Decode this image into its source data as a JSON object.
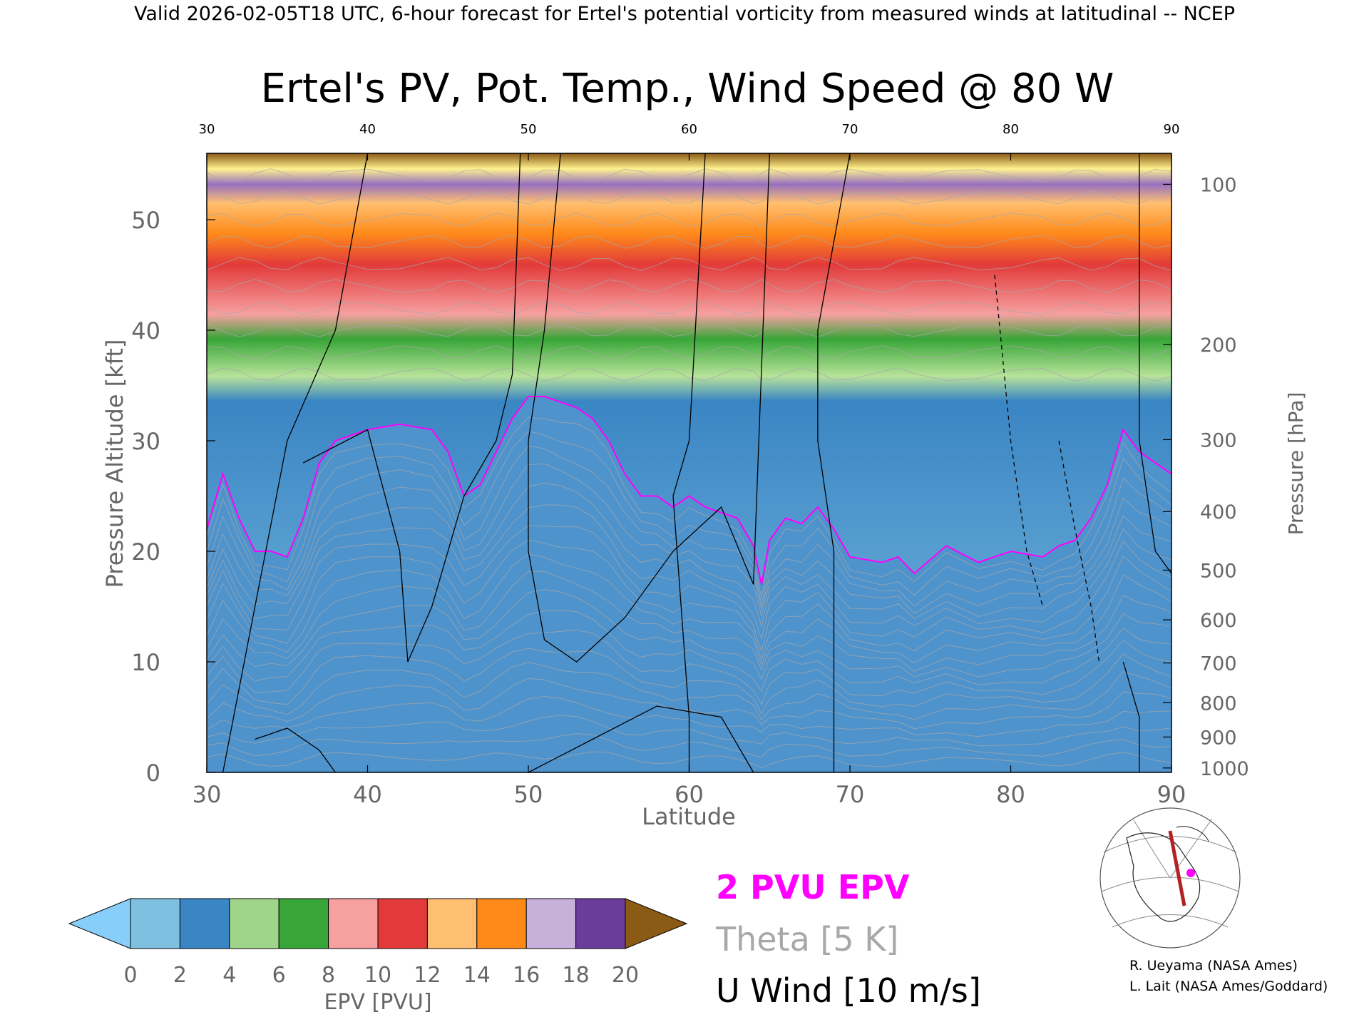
{
  "header": "Valid 2026-02-05T18 UTC, 6-hour forecast for Ertel's potential vorticity from measured winds at latitudinal -- NCEP",
  "chart_data": {
    "type": "heatmap",
    "title": "Ertel's PV, Pot. Temp., Wind Speed @ 80 W",
    "xlabel": "Latitude",
    "ylabel": "Pressure Altitude [kft]",
    "y2label": "Pressure [hPa]",
    "xlim": [
      30,
      90
    ],
    "ylim": [
      0,
      56
    ],
    "x_ticks": [
      "30",
      "40",
      "50",
      "60",
      "70",
      "80",
      "90"
    ],
    "y_ticks": [
      "0",
      "10",
      "20",
      "30",
      "40",
      "50"
    ],
    "pressure_ticks": [
      {
        "label": "1000",
        "kft": 0.4
      },
      {
        "label": "900",
        "kft": 3.2
      },
      {
        "label": "800",
        "kft": 6.3
      },
      {
        "label": "700",
        "kft": 9.9
      },
      {
        "label": "600",
        "kft": 13.8
      },
      {
        "label": "500",
        "kft": 18.3
      },
      {
        "label": "400",
        "kft": 23.6
      },
      {
        "label": "300",
        "kft": 30.1
      },
      {
        "label": "200",
        "kft": 38.7
      },
      {
        "label": "100",
        "kft": 53.2
      }
    ],
    "dynamic_tropopause_2pvu_kft": [
      [
        30,
        22
      ],
      [
        31,
        27
      ],
      [
        32,
        23
      ],
      [
        33,
        20
      ],
      [
        34,
        20
      ],
      [
        35,
        19.5
      ],
      [
        36,
        23
      ],
      [
        37,
        28
      ],
      [
        38,
        30
      ],
      [
        40,
        31
      ],
      [
        42,
        31.5
      ],
      [
        44,
        31
      ],
      [
        45,
        29
      ],
      [
        46,
        25
      ],
      [
        47,
        26
      ],
      [
        48,
        29
      ],
      [
        49,
        32
      ],
      [
        50,
        34
      ],
      [
        51,
        34
      ],
      [
        52,
        33.5
      ],
      [
        53,
        33
      ],
      [
        54,
        32
      ],
      [
        55,
        30
      ],
      [
        56,
        27
      ],
      [
        57,
        25
      ],
      [
        58,
        25
      ],
      [
        59,
        24
      ],
      [
        60,
        25
      ],
      [
        61,
        24
      ],
      [
        62,
        23.5
      ],
      [
        63,
        23
      ],
      [
        64,
        20.5
      ],
      [
        64.5,
        17
      ],
      [
        65,
        21
      ],
      [
        66,
        23
      ],
      [
        67,
        22.5
      ],
      [
        68,
        24
      ],
      [
        69,
        22
      ],
      [
        70,
        19.5
      ],
      [
        72,
        19
      ],
      [
        73,
        19.5
      ],
      [
        74,
        18
      ],
      [
        76,
        20.5
      ],
      [
        78,
        19
      ],
      [
        80,
        20
      ],
      [
        82,
        19.5
      ],
      [
        83,
        20.5
      ],
      [
        84,
        21
      ],
      [
        85,
        23
      ],
      [
        86,
        26
      ],
      [
        87,
        31
      ],
      [
        88,
        29
      ],
      [
        89,
        28
      ],
      [
        90,
        27
      ]
    ],
    "colorbar": {
      "label": "EPV [PVU]",
      "ticks": [
        "0",
        "2",
        "4",
        "6",
        "8",
        "10",
        "12",
        "14",
        "16",
        "18",
        "20"
      ],
      "colors": [
        "#7fbfe0",
        "#3a85c4",
        "#9fd58a",
        "#38a538",
        "#f6a0a0",
        "#e23a3a",
        "#ffbf70",
        "#ff8a1a",
        "#c7b0da",
        "#6a3d9a",
        "#fff28f",
        "#8b5a14"
      ],
      "under_color": "#87cefa",
      "over_color": "#8b5a14"
    },
    "legend": [
      {
        "label": "2 PVU EPV",
        "color": "#ff00ff"
      },
      {
        "label": "Theta [5 K]",
        "color": "#a8a8a8"
      },
      {
        "label": "U Wind [10 m/s]",
        "color": "#000000"
      }
    ]
  },
  "credits": [
    "R. Ueyama (NASA Ames)",
    "L. Lait (NASA Ames/Goddard)"
  ]
}
